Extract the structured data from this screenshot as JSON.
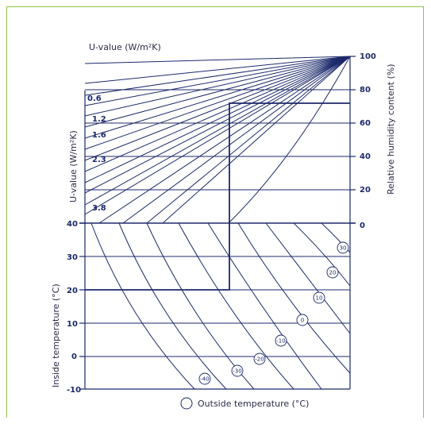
{
  "diagram": {
    "top_axis_title": "U-value (W/m²K)",
    "left_upper_axis_title": "U-value (W/m²K)",
    "left_lower_axis_title": "Inside temperature (°C)",
    "right_axis_title": "Relative humidity content (%)",
    "legend_label": "Outside temperature (°C)",
    "right_ticks": [
      "100",
      "80",
      "60",
      "40",
      "20",
      "0"
    ],
    "left_ticks": [
      "40",
      "30",
      "20",
      "10",
      "0",
      "-10"
    ],
    "u_values": [
      "0.6",
      "1.2",
      "1.6",
      "2.3",
      "3.8"
    ],
    "outside_temps": [
      "30",
      "20",
      "10",
      "0",
      "-10",
      "-20",
      "-30",
      "-40"
    ],
    "colors": {
      "line": "#1c2a6b",
      "frame": "#8cc63f"
    }
  }
}
